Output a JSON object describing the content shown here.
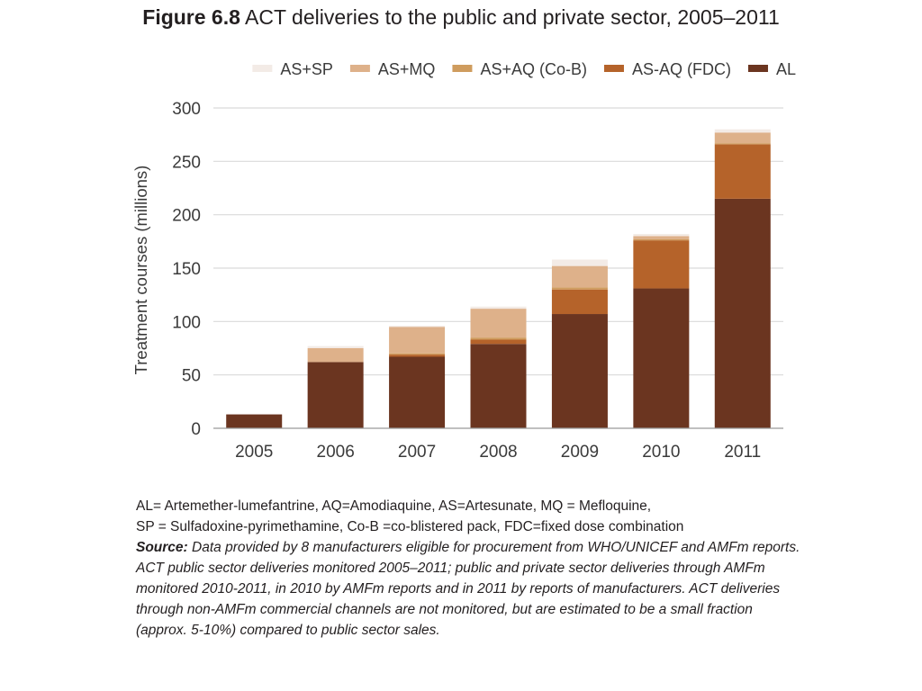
{
  "title": {
    "figure_label": "Figure 6.8",
    "text": "ACT deliveries to the public and private sector, 2005–2011"
  },
  "chart_data": {
    "type": "bar",
    "stacked": true,
    "categories": [
      "2005",
      "2006",
      "2007",
      "2008",
      "2009",
      "2010",
      "2011"
    ],
    "series": [
      {
        "name": "AL",
        "color": "#6b3520",
        "values": [
          13,
          62,
          67,
          79,
          107,
          131,
          215
        ]
      },
      {
        "name": "AS-AQ (FDC)",
        "color": "#b5632a",
        "values": [
          0,
          0,
          2,
          4,
          23,
          45,
          51
        ]
      },
      {
        "name": "AS+AQ (Co-B)",
        "color": "#cf9c5e",
        "values": [
          0,
          0,
          1,
          2,
          2,
          1,
          1
        ]
      },
      {
        "name": "AS+MQ",
        "color": "#deb18a",
        "values": [
          0,
          13,
          25,
          27,
          20,
          3,
          10
        ]
      },
      {
        "name": "AS+SP",
        "color": "#f3ebe6",
        "values": [
          0,
          2,
          1,
          2,
          6,
          2,
          3
        ]
      }
    ],
    "legend_order": [
      "AS+SP",
      "AS+MQ",
      "AS+AQ (Co-B)",
      "AS-AQ (FDC)",
      "AL"
    ],
    "legend_position": "top",
    "ylabel": "Treatment courses (millions)",
    "xlabel": "",
    "ylim": [
      0,
      300
    ],
    "yticks": [
      0,
      50,
      100,
      150,
      200,
      250,
      300
    ],
    "grid": true,
    "grid_color": "#d9d9d9"
  },
  "footnote": {
    "abbrev_line1": "AL= Artemether-lumefantrine, AQ=Amodiaquine, AS=Artesunate, MQ = Mefloquine,",
    "abbrev_line2": "SP = Sulfadoxine-pyrimethamine, Co-B =co-blistered pack, FDC=fixed dose combination",
    "source_label": "Source:",
    "source_text": "Data provided by 8 manufacturers eligible for procurement from WHO/UNICEF  and AMFm reports. ACT public sector deliveries monitored 2005–2011; public and private sector deliveries through AMFm monitored  2010-2011, in 2010 by AMFm reports and in 2011 by reports of manufacturers. ACT deliveries through non-AMFm commercial channels are not monitored, but are estimated to be a small fraction (approx. 5-10%) compared to public sector sales."
  }
}
